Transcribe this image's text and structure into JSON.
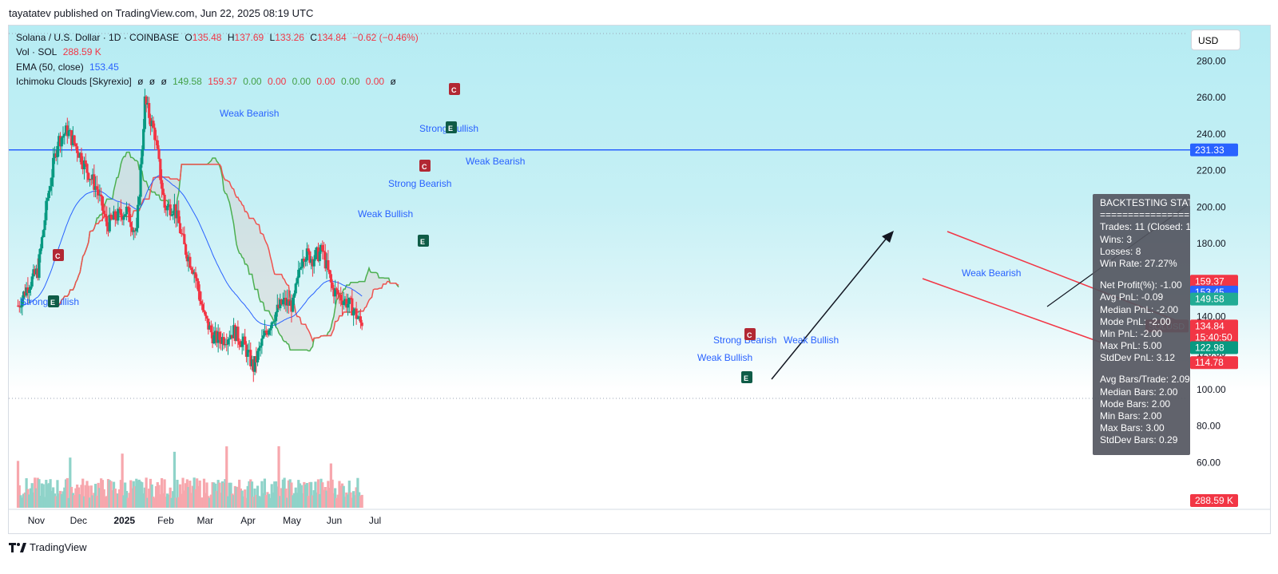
{
  "header": {
    "publish_caption": "tayatatev published on TradingView.com, Jun 22, 2025 08:19 UTC"
  },
  "footer": {
    "brand": "TradingView"
  },
  "legend": {
    "symbol_line": "Solana / U.S. Dollar · 1D · COINBASE",
    "ohlc": {
      "o_label": "O",
      "o": "135.48",
      "h_label": "H",
      "h": "137.69",
      "l_label": "L",
      "l": "133.26",
      "c_label": "C",
      "c": "134.84",
      "change": "−0.62 (−0.46%)"
    },
    "vol_label": "Vol · SOL",
    "vol_value": "288.59 K",
    "ema_label": "EMA (50, close)",
    "ema_value": "153.45",
    "ichimoku_label": "Ichimoku Clouds [Skyrexio]",
    "ichimoku_values": [
      "ø",
      "ø",
      "ø",
      "149.58",
      "159.37",
      "0.00",
      "0.00",
      "0.00",
      "0.00",
      "0.00",
      "0.00",
      "ø"
    ]
  },
  "currency_button": "USD",
  "backtest": {
    "title": "BACKTESTING STATS",
    "separator": "================",
    "lines": [
      "Trades: 11 (Closed: 11)",
      "Wins: 3",
      "Losses: 8",
      "Win Rate: 27.27%"
    ],
    "lines2": [
      "Net Profit(%): -1.00",
      "Avg PnL: -0.09",
      "Median PnL: -2.00",
      "Mode PnL: -2.00",
      "Min PnL: -2.00",
      "Max PnL: 5.00",
      "StdDev PnL: 3.12"
    ],
    "lines3": [
      "Avg Bars/Trade: 2.09",
      "Median Bars: 2.00",
      "Mode Bars: 2.00",
      "Min Bars: 2.00",
      "Max Bars: 3.00",
      "StdDev Bars: 0.29"
    ]
  },
  "chart_data": {
    "type": "candlestick",
    "symbol": "SOLUSD",
    "ylim": [
      50,
      295
    ],
    "y_ticks": [
      "280.00",
      "260.00",
      "240.00",
      "220.00",
      "200.00",
      "180.00",
      "160.00",
      "140.00",
      "120.00",
      "100.00",
      "80.00",
      "60.00"
    ],
    "x_ticks": [
      "Nov",
      "Dec",
      "2025",
      "Feb",
      "Mar",
      "Apr",
      "May",
      "Jun",
      "Jul"
    ],
    "horizontal_line": {
      "value": 231.33,
      "label": "231.33"
    },
    "price_labels": [
      {
        "value": 159.37,
        "text": "159.37",
        "color": "#f23645"
      },
      {
        "value": 153.45,
        "text": "153.45",
        "color": "#2962ff"
      },
      {
        "value": 149.58,
        "text": "149.58",
        "color": "#22ab94"
      },
      {
        "value": 134.84,
        "text": "134.84",
        "sub": "15:40:50",
        "color": "#f23645",
        "tag": "SOLUSD"
      },
      {
        "value": 122.98,
        "text": "122.98",
        "color": "#089981"
      },
      {
        "value": 114.78,
        "text": "114.78",
        "color": "#f23645"
      }
    ],
    "volume_label": {
      "text": "288.59 K",
      "color": "#f23645"
    },
    "close_series_key_points": [
      [
        "2024-10-20",
        146
      ],
      [
        "2024-10-27",
        157
      ],
      [
        "2024-11-03",
        165
      ],
      [
        "2024-11-10",
        205
      ],
      [
        "2024-11-17",
        236
      ],
      [
        "2024-11-24",
        242
      ],
      [
        "2024-12-01",
        232
      ],
      [
        "2024-12-08",
        220
      ],
      [
        "2024-12-15",
        210
      ],
      [
        "2024-12-22",
        190
      ],
      [
        "2024-12-29",
        195
      ],
      [
        "2025-01-05",
        198
      ],
      [
        "2025-01-12",
        185
      ],
      [
        "2025-01-18",
        258
      ],
      [
        "2025-01-25",
        240
      ],
      [
        "2025-02-01",
        200
      ],
      [
        "2025-02-08",
        200
      ],
      [
        "2025-02-15",
        178
      ],
      [
        "2025-02-22",
        165
      ],
      [
        "2025-03-01",
        140
      ],
      [
        "2025-03-08",
        128
      ],
      [
        "2025-03-15",
        128
      ],
      [
        "2025-03-22",
        132
      ],
      [
        "2025-03-29",
        125
      ],
      [
        "2025-04-05",
        112
      ],
      [
        "2025-04-12",
        128
      ],
      [
        "2025-04-19",
        140
      ],
      [
        "2025-04-26",
        148
      ],
      [
        "2025-05-03",
        146
      ],
      [
        "2025-05-10",
        175
      ],
      [
        "2025-05-17",
        172
      ],
      [
        "2025-05-24",
        176
      ],
      [
        "2025-05-31",
        155
      ],
      [
        "2025-06-07",
        150
      ],
      [
        "2025-06-14",
        145
      ],
      [
        "2025-06-21",
        134.84
      ]
    ],
    "annotations": [
      {
        "text": "Weak Bearish",
        "color": "#2962ff"
      },
      {
        "text": "Strong Bullish",
        "color": "#2962ff"
      },
      {
        "text": "Strong Bearish",
        "color": "#2962ff"
      },
      {
        "text": "Weak Bullish",
        "color": "#2962ff"
      },
      {
        "text": "Weak Bearish",
        "color": "#2962ff"
      },
      {
        "text": "Strong Bearish",
        "color": "#2962ff"
      },
      {
        "text": "Weak Bullish",
        "color": "#2962ff"
      },
      {
        "text": "Weak Bullish",
        "color": "#2962ff"
      },
      {
        "text": "Weak Bearish",
        "color": "#2962ff"
      },
      {
        "text": "Strong Bullish",
        "color": "#2962ff"
      }
    ],
    "markers": [
      {
        "text": "C",
        "color": "#b22833"
      },
      {
        "text": "E",
        "color": "#0f5c47"
      }
    ],
    "colors": {
      "up": "#089981",
      "down": "#f23645",
      "ema": "#2962ff",
      "span_a": "#4caf50",
      "span_b": "#ef5350",
      "cloud": "#d6d6d6",
      "hline": "#2962ff",
      "trend": "#f23645",
      "arrow": "#131722"
    }
  }
}
